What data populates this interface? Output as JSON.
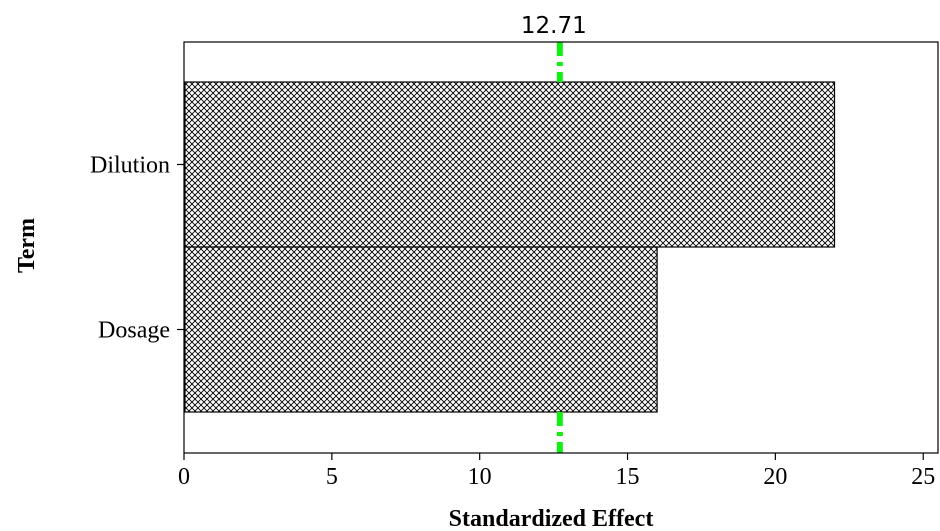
{
  "chart_data": {
    "type": "bar",
    "orientation": "horizontal",
    "categories": [
      "Dilution",
      "Dosage"
    ],
    "values": [
      22.0,
      16.0
    ],
    "xlabel": "Standardized Effect",
    "ylabel": "Term",
    "xlim": [
      0,
      25.5
    ],
    "xticks": [
      0,
      5,
      10,
      15,
      20,
      25
    ],
    "reference_line": {
      "value": 12.71,
      "label": "12.71",
      "color": "#11ee11",
      "style": "dash-dot"
    },
    "bar_fill": "crosshatch",
    "bar_color": "#000000",
    "grid": false
  }
}
